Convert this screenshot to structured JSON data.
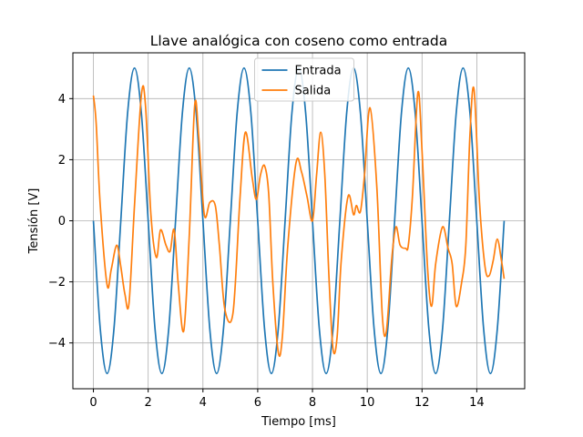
{
  "chart_data": {
    "type": "line",
    "title": "Llave analógica con coseno como entrada",
    "xlabel": "Tiempo [ms]",
    "ylabel": "Tensión [V]",
    "xlim": [
      -0.75,
      15.75
    ],
    "ylim": [
      -5.5,
      5.5
    ],
    "xticks": [
      0,
      2,
      4,
      6,
      8,
      10,
      12,
      14
    ],
    "yticks": [
      -4,
      -2,
      0,
      2,
      4
    ],
    "xtick_labels": [
      "0",
      "2",
      "4",
      "6",
      "8",
      "10",
      "12",
      "14"
    ],
    "ytick_labels": [
      "−4",
      "−2",
      "0",
      "2",
      "4"
    ],
    "grid": true,
    "legend_position": "top-center",
    "series": [
      {
        "name": "Entrada",
        "color": "#1f77b4",
        "x": [
          0,
          0.25,
          0.5,
          0.75,
          1.0,
          1.25,
          1.5,
          1.75,
          2.0,
          2.25,
          2.5,
          2.75,
          3.0,
          3.25,
          3.5,
          3.75,
          4.0,
          4.25,
          4.5,
          4.75,
          5.0,
          5.25,
          5.5,
          5.75,
          6.0,
          6.25,
          6.5,
          6.75,
          7.0,
          7.25,
          7.5,
          7.75,
          8.0,
          8.25,
          8.5,
          8.75,
          9.0,
          9.25,
          9.5,
          9.75,
          10.0,
          10.25,
          10.5,
          10.75,
          11.0,
          11.25,
          11.5,
          11.75,
          12.0,
          12.25,
          12.5,
          12.75,
          13.0,
          13.25,
          13.5,
          13.75,
          14.0,
          14.25,
          14.5,
          14.75,
          15.0
        ],
        "y": [
          0,
          -3.54,
          -5,
          -3.54,
          0,
          3.54,
          5,
          3.54,
          0,
          -3.54,
          -5,
          -3.54,
          0,
          3.54,
          5,
          3.54,
          0,
          -3.54,
          -5,
          -3.54,
          0,
          3.54,
          5,
          3.54,
          0,
          -3.54,
          -5,
          -3.54,
          0,
          3.54,
          5,
          3.54,
          0,
          -3.54,
          -5,
          -3.54,
          0,
          3.54,
          5,
          3.54,
          0,
          -3.54,
          -5,
          -3.54,
          0,
          3.54,
          5,
          3.54,
          0,
          -3.54,
          -5,
          -3.54,
          0,
          3.54,
          5,
          3.54,
          0,
          -3.54,
          -5,
          -3.54,
          0
        ]
      },
      {
        "name": "Salida",
        "color": "#ff7f0e",
        "x": [
          0,
          0.1,
          0.25,
          0.5,
          0.65,
          0.85,
          1.0,
          1.15,
          1.3,
          1.5,
          1.75,
          1.9,
          2.1,
          2.3,
          2.45,
          2.65,
          2.8,
          2.95,
          3.1,
          3.3,
          3.5,
          3.7,
          3.85,
          4.05,
          4.25,
          4.45,
          4.6,
          4.8,
          5.1,
          5.35,
          5.55,
          5.8,
          5.95,
          6.1,
          6.25,
          6.4,
          6.55,
          6.75,
          6.9,
          7.1,
          7.4,
          7.6,
          7.8,
          8.0,
          8.15,
          8.3,
          8.45,
          8.6,
          8.75,
          8.9,
          9.05,
          9.3,
          9.5,
          9.6,
          9.75,
          9.9,
          10.1,
          10.35,
          10.55,
          10.7,
          10.9,
          11.05,
          11.2,
          11.4,
          11.5,
          11.65,
          11.85,
          12.0,
          12.2,
          12.35,
          12.5,
          12.75,
          12.95,
          13.1,
          13.25,
          13.45,
          13.6,
          13.75,
          13.9,
          14.1,
          14.3,
          14.45,
          14.6,
          14.75,
          14.9,
          15.0
        ],
        "y": [
          4.1,
          3.2,
          0.5,
          -2.1,
          -1.6,
          -0.8,
          -1.5,
          -2.4,
          -2.7,
          0.5,
          4.1,
          3.8,
          0.2,
          -1.2,
          -0.3,
          -0.8,
          -1.0,
          -0.3,
          -2.1,
          -3.6,
          -0.5,
          3.8,
          2.7,
          0.2,
          0.6,
          0.5,
          -0.8,
          -2.9,
          -3.0,
          0.7,
          2.9,
          1.4,
          0.7,
          1.5,
          1.8,
          0.9,
          -2.0,
          -4.3,
          -3.8,
          -0.8,
          1.9,
          1.6,
          0.8,
          0.0,
          1.5,
          2.9,
          1.5,
          -1.8,
          -4.2,
          -3.8,
          -1.3,
          0.8,
          0.2,
          0.5,
          0.3,
          1.5,
          3.7,
          1.1,
          -3.1,
          -3.6,
          -1.2,
          -0.2,
          -0.8,
          -0.9,
          -0.8,
          0.8,
          4.2,
          2.3,
          -1.5,
          -2.8,
          -1.4,
          -0.2,
          -0.9,
          -1.4,
          -2.8,
          -2.0,
          -0.8,
          2.8,
          4.3,
          0.6,
          -1.5,
          -1.8,
          -1.3,
          -0.6,
          -1.3,
          -1.9
        ]
      }
    ]
  }
}
